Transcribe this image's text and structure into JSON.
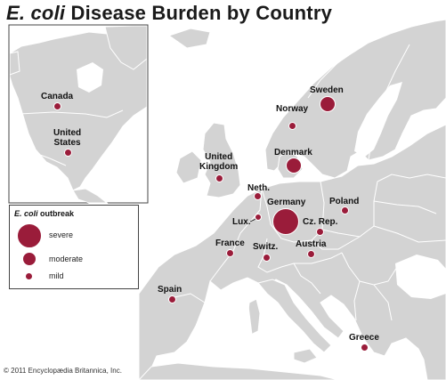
{
  "title": {
    "italic": "E. coli",
    "rest": " Disease Burden by Country"
  },
  "credit": "© 2011 Encyclopædia Britannica, Inc.",
  "colors": {
    "sea": "#ffffff",
    "land": "#d3d3d3",
    "border": "#ffffff",
    "dot": "#9a1c3a"
  },
  "legend": {
    "title_italic": "E. coli",
    "title_rest": " outbreak",
    "items": [
      {
        "label": "severe",
        "level": "severe"
      },
      {
        "label": "moderate",
        "level": "moderate"
      },
      {
        "label": "mild",
        "level": "mild"
      }
    ]
  },
  "countries": [
    {
      "id": "canada",
      "label": "Canada",
      "level": "mild"
    },
    {
      "id": "united-states",
      "label": "United\nStates",
      "level": "mild"
    },
    {
      "id": "sweden",
      "label": "Sweden",
      "level": "moderate"
    },
    {
      "id": "norway",
      "label": "Norway",
      "level": "mild"
    },
    {
      "id": "denmark",
      "label": "Denmark",
      "level": "moderate"
    },
    {
      "id": "united-kingdom",
      "label": "United\nKingdom",
      "level": "mild"
    },
    {
      "id": "netherlands",
      "label": "Neth.",
      "level": "mild"
    },
    {
      "id": "germany",
      "label": "Germany",
      "level": "severe"
    },
    {
      "id": "poland",
      "label": "Poland",
      "level": "mild"
    },
    {
      "id": "luxembourg",
      "label": "Lux.",
      "level": "mild"
    },
    {
      "id": "czech-republic",
      "label": "Cz. Rep.",
      "level": "mild"
    },
    {
      "id": "france",
      "label": "France",
      "level": "mild"
    },
    {
      "id": "switzerland",
      "label": "Switz.",
      "level": "mild"
    },
    {
      "id": "austria",
      "label": "Austria",
      "level": "mild"
    },
    {
      "id": "spain",
      "label": "Spain",
      "level": "mild"
    },
    {
      "id": "greece",
      "label": "Greece",
      "level": "mild"
    }
  ]
}
